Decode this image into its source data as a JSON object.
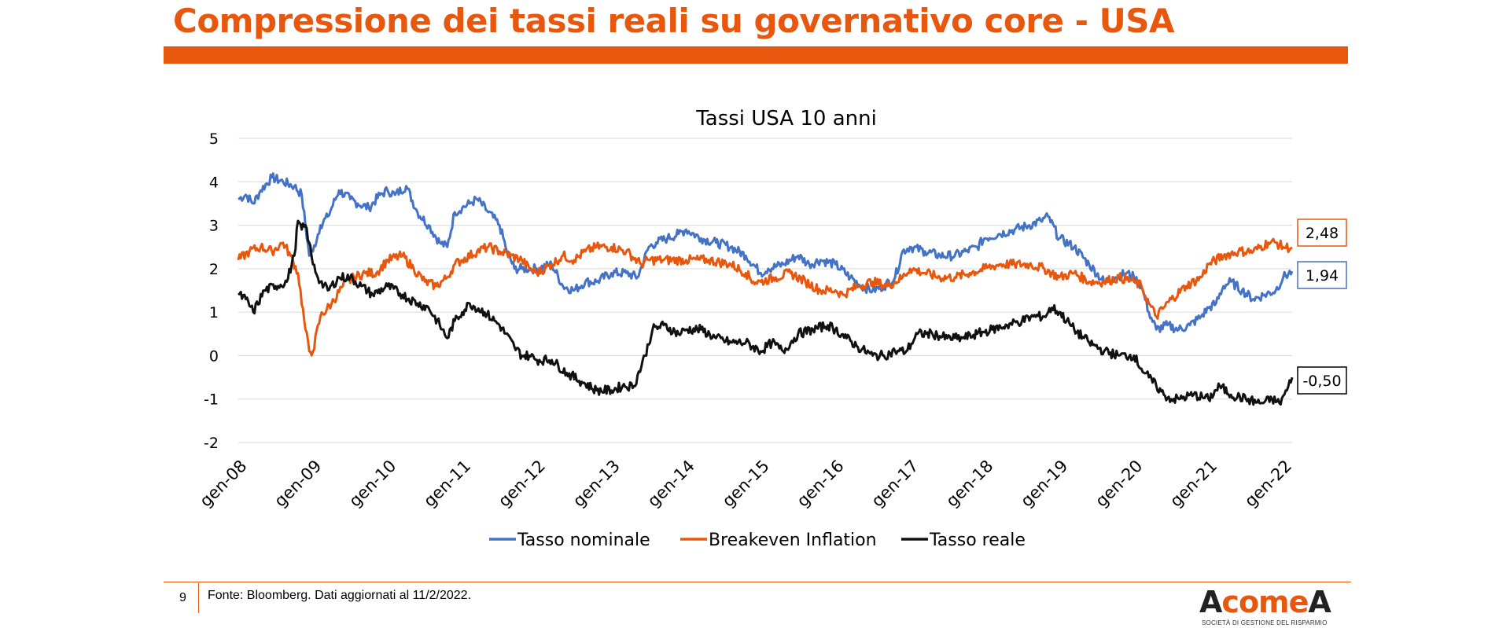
{
  "header": {
    "title": "Compressione dei tassi reali su governativo core - USA",
    "accent_color": "#E8570E"
  },
  "footer": {
    "page_number": "9",
    "source": "Fonte: Bloomberg. Dati aggiornati al 11/2/2022."
  },
  "logo": {
    "word_a": "A",
    "word_come": "come",
    "word_a2": "A",
    "tagline": "SOCIETÀ DI GESTIONE DEL RISPARMIO"
  },
  "chart_data": {
    "type": "line",
    "title": "Tassi USA 10 anni",
    "xlabel": "",
    "ylabel": "",
    "ylim": [
      -2,
      5
    ],
    "y_ticks": [
      5,
      4,
      3,
      2,
      1,
      0,
      -1,
      -2
    ],
    "y_tick_labels": [
      "5",
      "4",
      "3",
      "2",
      "1",
      "0",
      "-1",
      "-2"
    ],
    "x_range": [
      2008.0,
      2022.12
    ],
    "x_ticks": [
      2008,
      2009,
      2010,
      2011,
      2012,
      2013,
      2014,
      2015,
      2016,
      2017,
      2018,
      2019,
      2020,
      2021,
      2022
    ],
    "x_tick_labels": [
      "gen-08",
      "gen-09",
      "gen-10",
      "gen-11",
      "gen-12",
      "gen-13",
      "gen-14",
      "gen-15",
      "gen-16",
      "gen-17",
      "gen-18",
      "gen-19",
      "gen-20",
      "gen-21",
      "gen-22"
    ],
    "grid": true,
    "legend_position": "bottom",
    "series": [
      {
        "name": "Tasso nominale",
        "color": "#4472C4",
        "last_label": "1,94",
        "x": [
          2008.0,
          2008.1,
          2008.2,
          2008.3,
          2008.45,
          2008.6,
          2008.75,
          2008.85,
          2008.95,
          2009.0,
          2009.1,
          2009.2,
          2009.35,
          2009.5,
          2009.6,
          2009.75,
          2009.9,
          2010.0,
          2010.1,
          2010.25,
          2010.4,
          2010.55,
          2010.7,
          2010.8,
          2010.9,
          2011.0,
          2011.1,
          2011.2,
          2011.35,
          2011.5,
          2011.6,
          2011.7,
          2011.8,
          2011.9,
          2012.0,
          2012.2,
          2012.35,
          2012.5,
          2012.65,
          2012.8,
          2013.0,
          2013.2,
          2013.35,
          2013.5,
          2013.6,
          2013.75,
          2013.9,
          2014.0,
          2014.2,
          2014.4,
          2014.6,
          2014.8,
          2015.0,
          2015.1,
          2015.3,
          2015.5,
          2015.65,
          2015.8,
          2016.0,
          2016.2,
          2016.35,
          2016.5,
          2016.65,
          2016.8,
          2016.9,
          2017.0,
          2017.2,
          2017.4,
          2017.6,
          2017.75,
          2017.9,
          2018.0,
          2018.2,
          2018.4,
          2018.6,
          2018.75,
          2018.85,
          2019.0,
          2019.2,
          2019.4,
          2019.6,
          2019.75,
          2019.9,
          2020.0,
          2020.1,
          2020.2,
          2020.3,
          2020.45,
          2020.6,
          2020.75,
          2020.9,
          2021.0,
          2021.1,
          2021.2,
          2021.3,
          2021.45,
          2021.6,
          2021.75,
          2021.9,
          2022.0,
          2022.12
        ],
        "values": [
          3.6,
          3.7,
          3.5,
          3.8,
          4.1,
          4.0,
          3.9,
          3.7,
          2.3,
          2.4,
          3.0,
          3.2,
          3.8,
          3.6,
          3.5,
          3.4,
          3.7,
          3.8,
          3.7,
          3.9,
          3.3,
          3.0,
          2.6,
          2.5,
          3.3,
          3.4,
          3.5,
          3.6,
          3.3,
          3.0,
          2.4,
          2.0,
          2.0,
          2.0,
          2.0,
          2.1,
          1.6,
          1.5,
          1.7,
          1.7,
          1.9,
          1.9,
          1.8,
          2.5,
          2.6,
          2.7,
          2.8,
          2.9,
          2.7,
          2.6,
          2.5,
          2.3,
          1.9,
          2.0,
          2.1,
          2.3,
          2.1,
          2.2,
          2.1,
          1.8,
          1.6,
          1.5,
          1.6,
          1.8,
          2.4,
          2.5,
          2.4,
          2.3,
          2.3,
          2.4,
          2.5,
          2.7,
          2.8,
          2.9,
          3.0,
          3.1,
          3.2,
          2.7,
          2.5,
          2.1,
          1.7,
          1.8,
          1.9,
          1.8,
          1.6,
          1.0,
          0.6,
          0.7,
          0.6,
          0.7,
          0.9,
          1.1,
          1.2,
          1.6,
          1.7,
          1.5,
          1.3,
          1.4,
          1.5,
          1.8,
          1.94
        ]
      },
      {
        "name": "Breakeven Inflation",
        "color": "#E8570E",
        "last_label": "2,48",
        "x": [
          2008.0,
          2008.15,
          2008.3,
          2008.45,
          2008.6,
          2008.7,
          2008.8,
          2008.9,
          2008.95,
          2009.0,
          2009.1,
          2009.25,
          2009.4,
          2009.55,
          2009.7,
          2009.85,
          2010.0,
          2010.2,
          2010.35,
          2010.5,
          2010.65,
          2010.8,
          2010.9,
          2011.0,
          2011.2,
          2011.35,
          2011.5,
          2011.65,
          2011.8,
          2011.9,
          2012.0,
          2012.2,
          2012.35,
          2012.5,
          2012.65,
          2012.8,
          2013.0,
          2013.2,
          2013.4,
          2013.5,
          2013.7,
          2014.0,
          2014.3,
          2014.6,
          2014.8,
          2014.9,
          2015.0,
          2015.2,
          2015.4,
          2015.6,
          2015.8,
          2016.0,
          2016.1,
          2016.3,
          2016.5,
          2016.7,
          2016.9,
          2017.0,
          2017.2,
          2017.4,
          2017.6,
          2017.8,
          2018.0,
          2018.2,
          2018.4,
          2018.6,
          2018.8,
          2019.0,
          2019.2,
          2019.4,
          2019.6,
          2019.8,
          2020.0,
          2020.1,
          2020.2,
          2020.3,
          2020.5,
          2020.7,
          2020.9,
          2021.0,
          2021.2,
          2021.4,
          2021.6,
          2021.8,
          2021.9,
          2022.0,
          2022.12
        ],
        "values": [
          2.2,
          2.4,
          2.5,
          2.4,
          2.6,
          2.3,
          1.9,
          0.6,
          0.1,
          0.1,
          0.9,
          1.2,
          1.6,
          1.8,
          1.9,
          1.9,
          2.2,
          2.3,
          2.0,
          1.7,
          1.6,
          1.8,
          2.1,
          2.2,
          2.4,
          2.5,
          2.4,
          2.3,
          2.2,
          2.0,
          1.9,
          2.1,
          2.3,
          2.2,
          2.4,
          2.5,
          2.5,
          2.4,
          2.1,
          2.2,
          2.2,
          2.2,
          2.2,
          2.1,
          1.9,
          1.7,
          1.7,
          1.8,
          1.9,
          1.7,
          1.5,
          1.5,
          1.4,
          1.6,
          1.7,
          1.6,
          1.8,
          2.0,
          1.9,
          1.8,
          1.8,
          1.9,
          2.0,
          2.1,
          2.1,
          2.1,
          2.0,
          1.8,
          1.9,
          1.7,
          1.7,
          1.8,
          1.7,
          1.6,
          1.2,
          0.9,
          1.3,
          1.6,
          1.8,
          2.1,
          2.3,
          2.4,
          2.4,
          2.6,
          2.6,
          2.5,
          2.48
        ]
      },
      {
        "name": "Tasso reale",
        "color": "#111111",
        "last_label": "-0,50",
        "x": [
          2008.0,
          2008.1,
          2008.2,
          2008.35,
          2008.5,
          2008.65,
          2008.75,
          2008.8,
          2008.85,
          2008.9,
          2008.95,
          2009.0,
          2009.1,
          2009.2,
          2009.35,
          2009.5,
          2009.65,
          2009.8,
          2010.0,
          2010.2,
          2010.4,
          2010.55,
          2010.7,
          2010.8,
          2010.9,
          2011.0,
          2011.1,
          2011.3,
          2011.5,
          2011.7,
          2011.8,
          2011.9,
          2012.0,
          2012.2,
          2012.4,
          2012.6,
          2012.8,
          2013.0,
          2013.15,
          2013.3,
          2013.45,
          2013.55,
          2013.7,
          2013.9,
          2014.0,
          2014.2,
          2014.4,
          2014.6,
          2014.8,
          2015.0,
          2015.15,
          2015.3,
          2015.5,
          2015.7,
          2015.9,
          2016.0,
          2016.15,
          2016.3,
          2016.5,
          2016.65,
          2016.8,
          2016.95,
          2017.1,
          2017.3,
          2017.5,
          2017.7,
          2017.9,
          2018.1,
          2018.3,
          2018.5,
          2018.65,
          2018.8,
          2018.9,
          2019.0,
          2019.2,
          2019.4,
          2019.6,
          2019.8,
          2020.0,
          2020.1,
          2020.2,
          2020.3,
          2020.4,
          2020.5,
          2020.6,
          2020.8,
          2021.0,
          2021.15,
          2021.3,
          2021.5,
          2021.7,
          2021.85,
          2021.95,
          2022.05,
          2022.12
        ],
        "values": [
          1.4,
          1.3,
          1.0,
          1.5,
          1.6,
          1.7,
          2.3,
          3.1,
          2.9,
          3.0,
          2.6,
          2.1,
          1.7,
          1.5,
          1.8,
          1.8,
          1.6,
          1.4,
          1.6,
          1.4,
          1.2,
          1.1,
          0.7,
          0.4,
          0.8,
          1.0,
          1.2,
          1.0,
          0.7,
          0.2,
          0.0,
          0.0,
          -0.1,
          -0.1,
          -0.4,
          -0.6,
          -0.8,
          -0.8,
          -0.7,
          -0.7,
          0.0,
          0.6,
          0.7,
          0.5,
          0.6,
          0.6,
          0.4,
          0.3,
          0.3,
          0.1,
          0.3,
          0.1,
          0.5,
          0.6,
          0.7,
          0.6,
          0.4,
          0.2,
          0.0,
          0.0,
          0.1,
          0.1,
          0.5,
          0.5,
          0.4,
          0.4,
          0.5,
          0.6,
          0.7,
          0.8,
          0.9,
          0.9,
          1.1,
          1.0,
          0.6,
          0.3,
          0.1,
          0.0,
          0.0,
          -0.3,
          -0.5,
          -0.7,
          -0.9,
          -1.0,
          -1.0,
          -0.9,
          -1.0,
          -0.7,
          -0.9,
          -1.0,
          -1.1,
          -1.0,
          -1.1,
          -0.8,
          -0.5
        ]
      }
    ]
  }
}
